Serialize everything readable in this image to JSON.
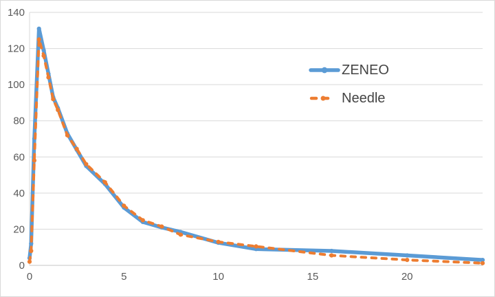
{
  "window": {
    "background_color": "#FFFFFF",
    "border_color": "#D9D9D9"
  },
  "chart_data": {
    "type": "line",
    "title": "",
    "xlabel": "",
    "ylabel": "",
    "xlim": [
      0,
      24
    ],
    "ylim": [
      0,
      140
    ],
    "xticks": [
      0,
      5,
      10,
      15,
      20
    ],
    "yticks": [
      0,
      20,
      40,
      60,
      80,
      100,
      120,
      140
    ],
    "grid": "horizontal-major-only",
    "gridline_color": "#D9D9D9",
    "axis_line_color": "#C6C6C6",
    "axis_label_color": "#595959",
    "legend_position": "inside-upper-right",
    "legend_text_color": "#444444",
    "x": [
      0,
      0.083,
      0.25,
      0.5,
      0.75,
      1,
      1.25,
      1.5,
      2,
      2.5,
      3,
      4,
      5,
      6,
      7,
      8,
      10,
      12,
      16,
      20,
      24
    ],
    "series": [
      {
        "name": "ZENEO",
        "color": "#5B9BD5",
        "style": "solid",
        "line_width": 5.5,
        "values": [
          4,
          12,
          70,
          131,
          119,
          106,
          93,
          87,
          73,
          64,
          55,
          45,
          32,
          24,
          21,
          18.5,
          12.5,
          9,
          8,
          5.5,
          3
        ]
      },
      {
        "name": "Needle",
        "color": "#ED7D31",
        "style": "dashed",
        "line_width": 4,
        "values": [
          2,
          8,
          58,
          125,
          116,
          104,
          92,
          86,
          72,
          64.5,
          56,
          46,
          33,
          25,
          21.5,
          17,
          13,
          10.5,
          5.5,
          3,
          1.2
        ]
      }
    ]
  }
}
